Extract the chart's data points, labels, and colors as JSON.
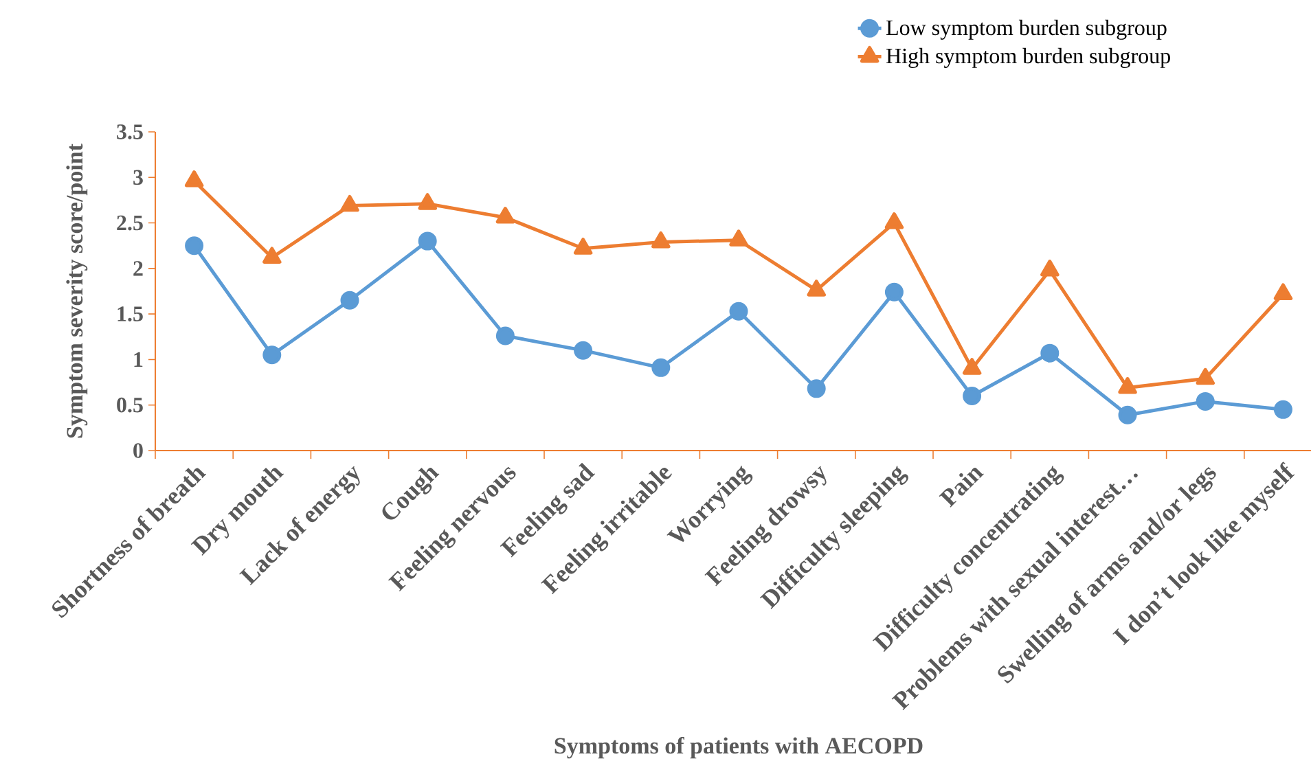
{
  "chart_data": {
    "type": "line",
    "xlabel": "Symptoms of patients with AECOPD",
    "ylabel": "Symptom severity score/point",
    "categories": [
      "Shortness of breath",
      "Dry mouth",
      "Lack of energy",
      "Cough",
      "Feeling nervous",
      "Feeling sad",
      "Feeling irritable",
      "Worrying",
      "Feeling drowsy",
      "Difficulty sleeping",
      "Pain",
      "Difficulty concentrating",
      "Problems with sexual interest…",
      "Swelling of arms and/or legs",
      "I don’t look like myself"
    ],
    "series": [
      {
        "name": "Low symptom burden subgroup",
        "color": "#5b9bd5",
        "marker": "circle",
        "values": [
          2.25,
          1.05,
          1.65,
          2.3,
          1.26,
          1.1,
          0.91,
          1.53,
          0.68,
          1.74,
          0.6,
          1.07,
          0.39,
          0.54,
          0.45
        ]
      },
      {
        "name": "High symptom burden subgroup",
        "color": "#ed7d31",
        "marker": "triangle",
        "values": [
          2.96,
          2.12,
          2.69,
          2.71,
          2.56,
          2.22,
          2.29,
          2.31,
          1.76,
          2.5,
          0.9,
          1.98,
          0.69,
          0.79,
          1.72
        ]
      }
    ],
    "ylim": [
      0,
      3.5
    ],
    "yticks": [
      0,
      0.5,
      1,
      1.5,
      2,
      2.5,
      3,
      3.5
    ],
    "grid": false,
    "legend": "top right",
    "line_style": "solid"
  }
}
